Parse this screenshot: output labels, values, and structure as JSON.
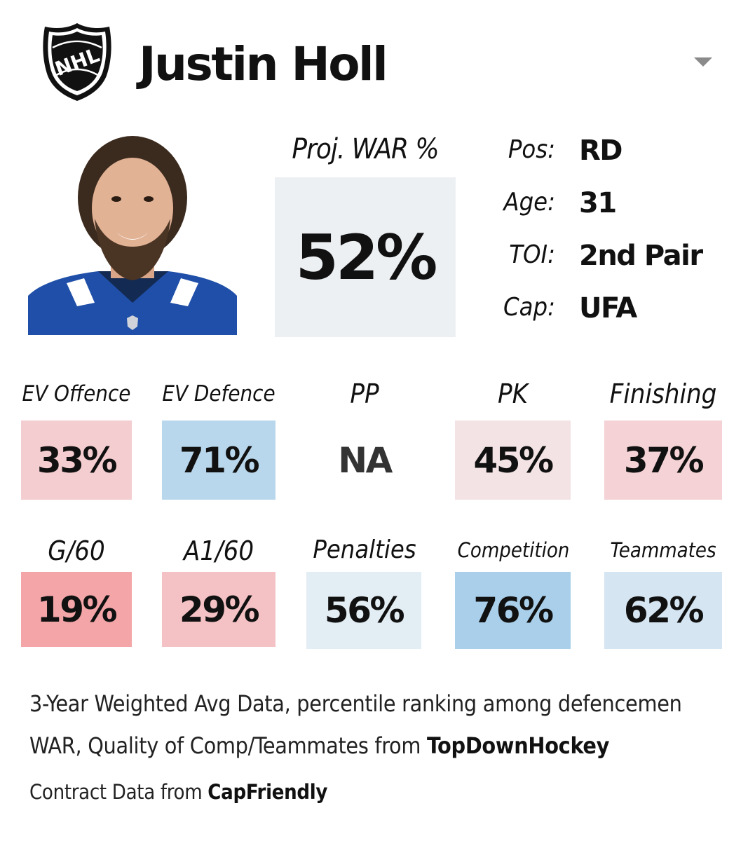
{
  "header": {
    "logo_text": "NHL",
    "player_name": "Justin Holl"
  },
  "war": {
    "label": "Proj. WAR %",
    "value": "52%"
  },
  "info": [
    {
      "label": "Pos:",
      "value": "RD"
    },
    {
      "label": "Age:",
      "value": "31"
    },
    {
      "label": "TOI:",
      "value": "2nd Pair"
    },
    {
      "label": "Cap:",
      "value": "UFA"
    }
  ],
  "stats_row1": [
    {
      "label": "EV Offence",
      "value": "33%",
      "color": "#f4cdd0"
    },
    {
      "label": "EV Defence",
      "value": "71%",
      "color": "#b9d7ec"
    },
    {
      "label": "PP",
      "value": "NA",
      "color": "#ffffff"
    },
    {
      "label": "PK",
      "value": "45%",
      "color": "#f3e3e4"
    },
    {
      "label": "Finishing",
      "value": "37%",
      "color": "#f4d2d5"
    }
  ],
  "stats_row2": [
    {
      "label": "G/60",
      "value": "19%",
      "color": "#f3a5a8"
    },
    {
      "label": "A1/60",
      "value": "29%",
      "color": "#f4c2c5"
    },
    {
      "label": "Penalties",
      "value": "56%",
      "color": "#e3edf4"
    },
    {
      "label": "Competition",
      "value": "76%",
      "color": "#a9cfea"
    },
    {
      "label": "Teammates",
      "value": "62%",
      "color": "#d5e5f2"
    }
  ],
  "footer": {
    "line1": "3-Year Weighted Avg Data, percentile ranking among defencemen",
    "line2_prefix": "WAR, Quality of Comp/Teammates from ",
    "line2_source": "TopDownHockey",
    "line3_prefix": "Contract Data from ",
    "line3_source": "CapFriendly"
  }
}
